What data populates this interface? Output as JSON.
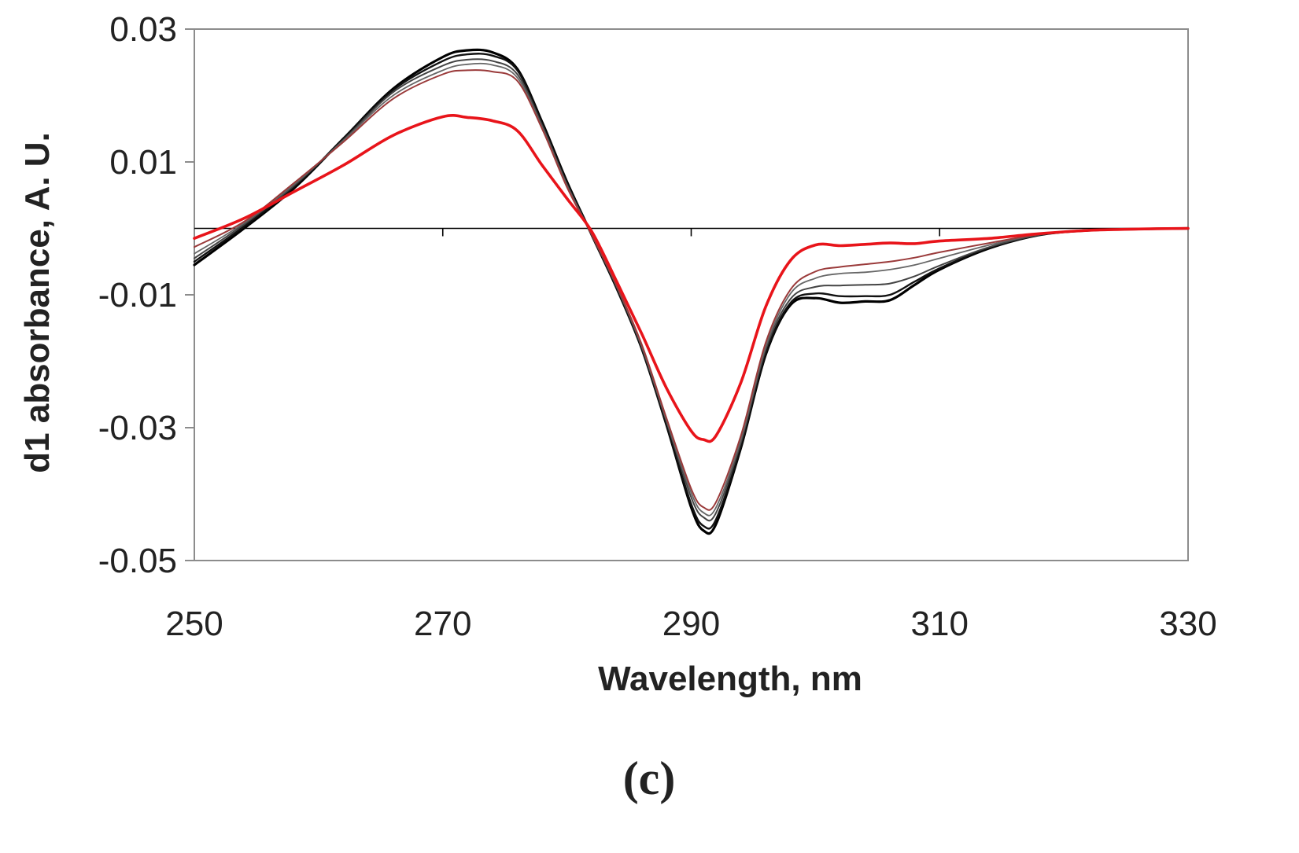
{
  "chart_data": {
    "type": "line",
    "title": "",
    "xlabel": "Wavelength, nm",
    "ylabel": "d1 absorbance, A. U.",
    "panel_label": "(c)",
    "xlim": [
      250,
      330
    ],
    "ylim": [
      -0.05,
      0.03
    ],
    "xticks": [
      250,
      270,
      290,
      310,
      330
    ],
    "yticks": [
      0.03,
      0.01,
      -0.01,
      -0.03,
      -0.05
    ],
    "xtick_labels": [
      "250",
      "270",
      "290",
      "310",
      "330"
    ],
    "ytick_labels": [
      "0.03",
      "0.01",
      "-0.01",
      "-0.03",
      "-0.05"
    ],
    "zero_line": 0,
    "grid": false,
    "legend": "none",
    "x": [
      250,
      254,
      258,
      262,
      266,
      270,
      272,
      274,
      276,
      278,
      280,
      282,
      284,
      286,
      288,
      290,
      291,
      292,
      294,
      296,
      298,
      300,
      302,
      304,
      306,
      308,
      310,
      314,
      318,
      322,
      326,
      330
    ],
    "series": [
      {
        "name": "black-1",
        "color": "#000000",
        "width": 3.2,
        "values": [
          -0.0055,
          0.0,
          0.006,
          0.0135,
          0.021,
          0.0258,
          0.0268,
          0.0265,
          0.024,
          0.016,
          0.007,
          -0.001,
          -0.009,
          -0.018,
          -0.0295,
          -0.042,
          -0.0455,
          -0.0445,
          -0.033,
          -0.019,
          -0.0115,
          -0.0105,
          -0.0112,
          -0.011,
          -0.0108,
          -0.0085,
          -0.0062,
          -0.003,
          -0.001,
          -0.0003,
          -0.0001,
          0.0
        ]
      },
      {
        "name": "black-2",
        "color": "#111111",
        "width": 2.4,
        "values": [
          -0.005,
          0.0003,
          0.0062,
          0.0135,
          0.0208,
          0.0252,
          0.0262,
          0.026,
          0.0238,
          0.0158,
          0.0068,
          -0.001,
          -0.009,
          -0.018,
          -0.0295,
          -0.0415,
          -0.0448,
          -0.0438,
          -0.0328,
          -0.0188,
          -0.0112,
          -0.0098,
          -0.0102,
          -0.0102,
          -0.01,
          -0.008,
          -0.006,
          -0.0029,
          -0.001,
          -0.0003,
          -0.0001,
          0.0
        ]
      },
      {
        "name": "gray-1",
        "color": "#444444",
        "width": 2.0,
        "values": [
          -0.0045,
          0.0006,
          0.0064,
          0.0133,
          0.0205,
          0.0245,
          0.0254,
          0.0252,
          0.0232,
          0.0155,
          0.0066,
          -0.001,
          -0.0088,
          -0.0178,
          -0.029,
          -0.0405,
          -0.0435,
          -0.0428,
          -0.0322,
          -0.0182,
          -0.0106,
          -0.0088,
          -0.0086,
          -0.0085,
          -0.0083,
          -0.0072,
          -0.0056,
          -0.0028,
          -0.001,
          -0.0003,
          -0.0001,
          0.0
        ]
      },
      {
        "name": "gray-2",
        "color": "#666666",
        "width": 1.8,
        "values": [
          -0.0038,
          0.0008,
          0.0066,
          0.0132,
          0.02,
          0.0238,
          0.0247,
          0.0246,
          0.0227,
          0.0152,
          0.0064,
          -0.001,
          -0.0087,
          -0.0176,
          -0.0288,
          -0.0398,
          -0.0428,
          -0.042,
          -0.0318,
          -0.0178,
          -0.0098,
          -0.0075,
          -0.0068,
          -0.0066,
          -0.0062,
          -0.0055,
          -0.0045,
          -0.0025,
          -0.0009,
          -0.0003,
          -0.0001,
          0.0
        ]
      },
      {
        "name": "red-brown",
        "color": "#9a3a3a",
        "width": 2.0,
        "values": [
          -0.0028,
          0.001,
          0.0068,
          0.013,
          0.0195,
          0.0232,
          0.0238,
          0.0236,
          0.0222,
          0.015,
          0.0062,
          -0.001,
          -0.0086,
          -0.0174,
          -0.0285,
          -0.0392,
          -0.042,
          -0.0412,
          -0.0312,
          -0.0172,
          -0.0092,
          -0.0065,
          -0.0058,
          -0.0054,
          -0.005,
          -0.0044,
          -0.0036,
          -0.0022,
          -0.0009,
          -0.0003,
          -0.0001,
          0.0
        ]
      },
      {
        "name": "red",
        "color": "#e8141a",
        "width": 3.6,
        "values": [
          -0.0015,
          0.0015,
          0.0055,
          0.0095,
          0.014,
          0.0168,
          0.0167,
          0.0162,
          0.0147,
          0.0095,
          0.0045,
          -0.0005,
          -0.008,
          -0.0158,
          -0.024,
          -0.0305,
          -0.0318,
          -0.0312,
          -0.0232,
          -0.0118,
          -0.0048,
          -0.0025,
          -0.0026,
          -0.0024,
          -0.0022,
          -0.0023,
          -0.0019,
          -0.0015,
          -0.0008,
          -0.0003,
          -0.0001,
          0.0
        ]
      }
    ]
  }
}
